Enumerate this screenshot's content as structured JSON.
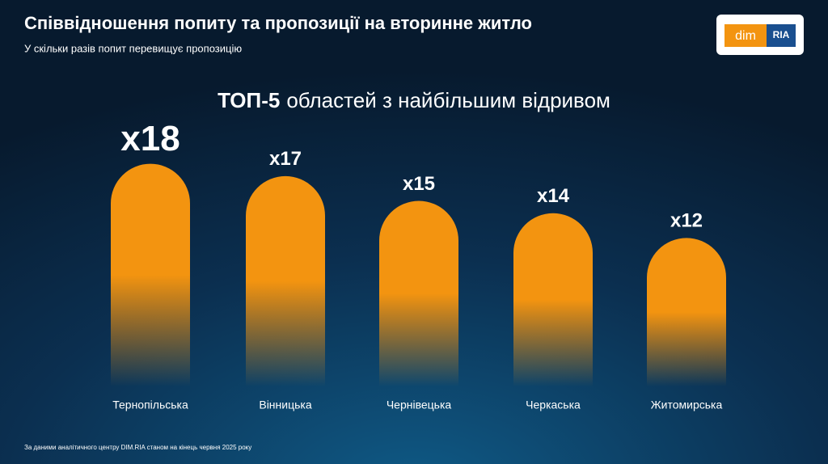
{
  "title": "Співвідношення попиту та пропозиції на вторинне житло",
  "subtitle": "У скільки разів попит перевищує пропозицію",
  "logo": {
    "left": "dim",
    "right": "RIA"
  },
  "footnote": "За даними аналітичного центру DIM.RIA станом на кінець червня 2025 року",
  "chart_data": {
    "type": "bar",
    "title_bold": "ТОП-5",
    "title": "областей з найбільшим відривом",
    "categories": [
      "Тернопільська",
      "Вінницька",
      "Чернівецька",
      "Черкаська",
      "Житомирська"
    ],
    "values": [
      18,
      17,
      15,
      14,
      12
    ],
    "value_labels": [
      "x18",
      "x17",
      "x15",
      "x14",
      "x12"
    ],
    "color": "#f39410"
  }
}
